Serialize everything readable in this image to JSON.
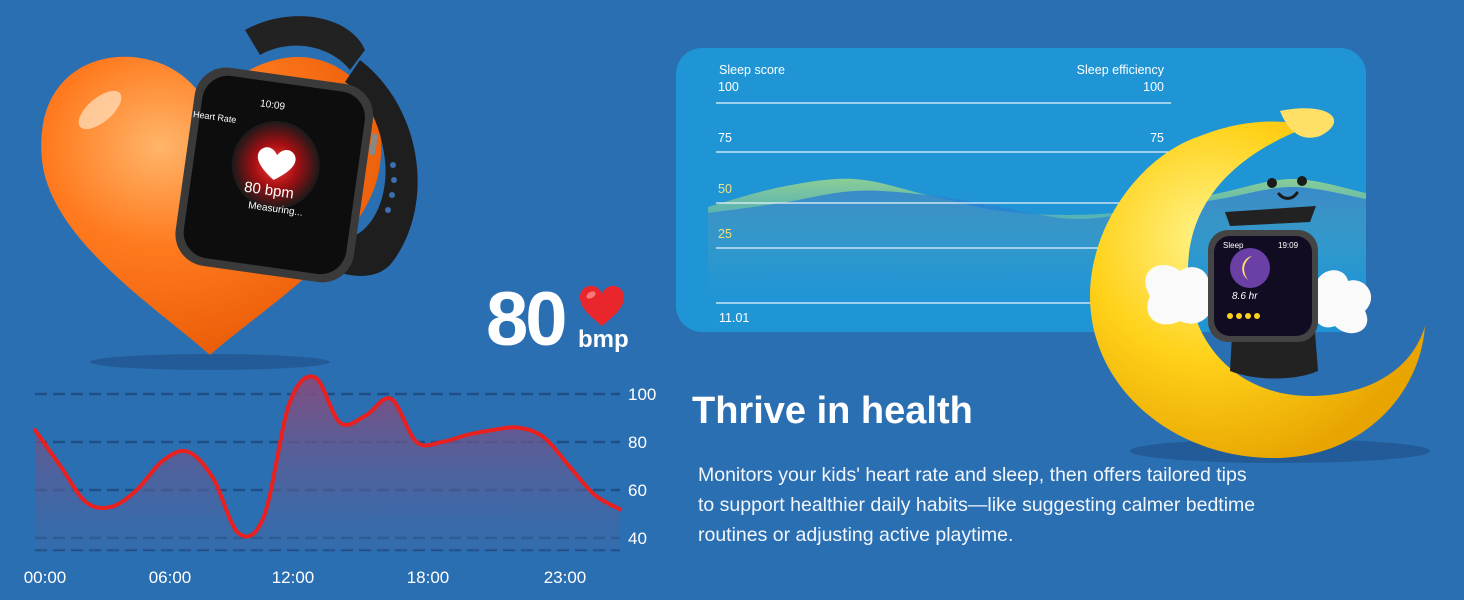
{
  "watch_heart": {
    "screen_title": "Heart Rate",
    "screen_time": "10:09",
    "screen_value": "80 bpm",
    "screen_status": "Measuring..."
  },
  "big_reading": {
    "value": "80",
    "unit": "bmp"
  },
  "heart_rate_chart": {
    "y_ticks": [
      "100",
      "80",
      "60",
      "40"
    ],
    "x_ticks": [
      "00:00",
      "06:00",
      "12:00",
      "18:00",
      "23:00"
    ]
  },
  "sleep_chart": {
    "left_label": "Sleep score",
    "right_label": "Sleep efficiency",
    "left_ticks": [
      "100",
      "75",
      "50",
      "25"
    ],
    "right_ticks": [
      "100",
      "75"
    ],
    "x_label": "11.01"
  },
  "watch_sleep": {
    "screen_title": "Sleep",
    "screen_time": "19:09",
    "screen_value": "8.6 hr"
  },
  "headline": "Thrive in health",
  "description": "Monitors your kids' heart rate and sleep, then offers tailored tips to support healthier daily habits—like suggesting calmer bedtime routines or adjusting active playtime.",
  "chart_data": [
    {
      "type": "area",
      "x_ticks": [
        "00:00",
        "06:00",
        "12:00",
        "18:00",
        "23:00"
      ],
      "y_ticks": [
        100,
        80,
        60,
        40
      ],
      "ylim": [
        35,
        110
      ],
      "grid": true,
      "series": [
        {
          "x": [
            0,
            1,
            2,
            3,
            4,
            5,
            6,
            7,
            8,
            9,
            10,
            11,
            12,
            13,
            14,
            15,
            16,
            17,
            18,
            19,
            20,
            21,
            22,
            23
          ],
          "values": [
            85,
            70,
            55,
            53,
            60,
            72,
            76,
            65,
            42,
            49,
            96,
            107,
            88,
            91,
            98,
            80,
            80,
            83,
            85,
            86,
            82,
            70,
            58,
            52
          ],
          "color": "#e8201f"
        }
      ]
    },
    {
      "type": "area",
      "left_ticks": [
        100,
        75,
        50,
        25
      ],
      "right_ticks": [
        100,
        75
      ],
      "x_ticks": [
        "11.01"
      ],
      "ylim": [
        0,
        100
      ],
      "grid": true,
      "series": [
        {
          "values": [
            48,
            58,
            62,
            54,
            46,
            44,
            47,
            55,
            62,
            55
          ],
          "color": "#8fd18a"
        },
        {
          "values": [
            45,
            50,
            56,
            54,
            48,
            42,
            46,
            52,
            58,
            52
          ],
          "color": "#2f84d4"
        }
      ]
    }
  ]
}
